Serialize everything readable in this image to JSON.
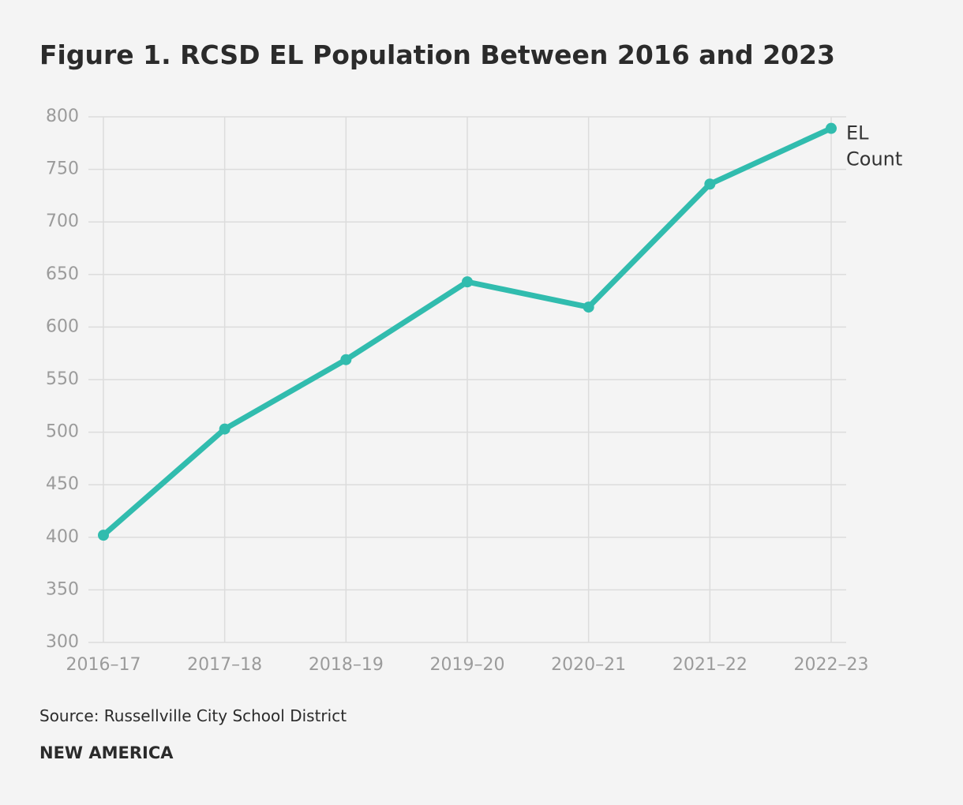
{
  "title": "Figure 1. RCSD EL Population Between 2016 and 2023",
  "source": "Source: Russellville City School District",
  "brand": "NEW AMERICA",
  "colors": {
    "line": "#31bcae",
    "grid": "#dcdcdc",
    "tick_text": "#9b9b9b",
    "background": "#f4f4f4"
  },
  "chart_data": {
    "type": "line",
    "title": "Figure 1. RCSD EL Population Between 2016 and 2023",
    "xlabel": "",
    "ylabel": "",
    "categories": [
      "2016–17",
      "2017–18",
      "2018–19",
      "2019–20",
      "2020–21",
      "2021–22",
      "2022–23"
    ],
    "series": [
      {
        "name": "EL Count",
        "name_lines": [
          "EL",
          "Count"
        ],
        "values": [
          402,
          503,
          569,
          643,
          619,
          736,
          789
        ]
      }
    ],
    "ylim": [
      300,
      800
    ],
    "yticks": [
      300,
      350,
      400,
      450,
      500,
      550,
      600,
      650,
      700,
      750,
      800
    ],
    "grid": true,
    "legend": "end-of-line label"
  }
}
